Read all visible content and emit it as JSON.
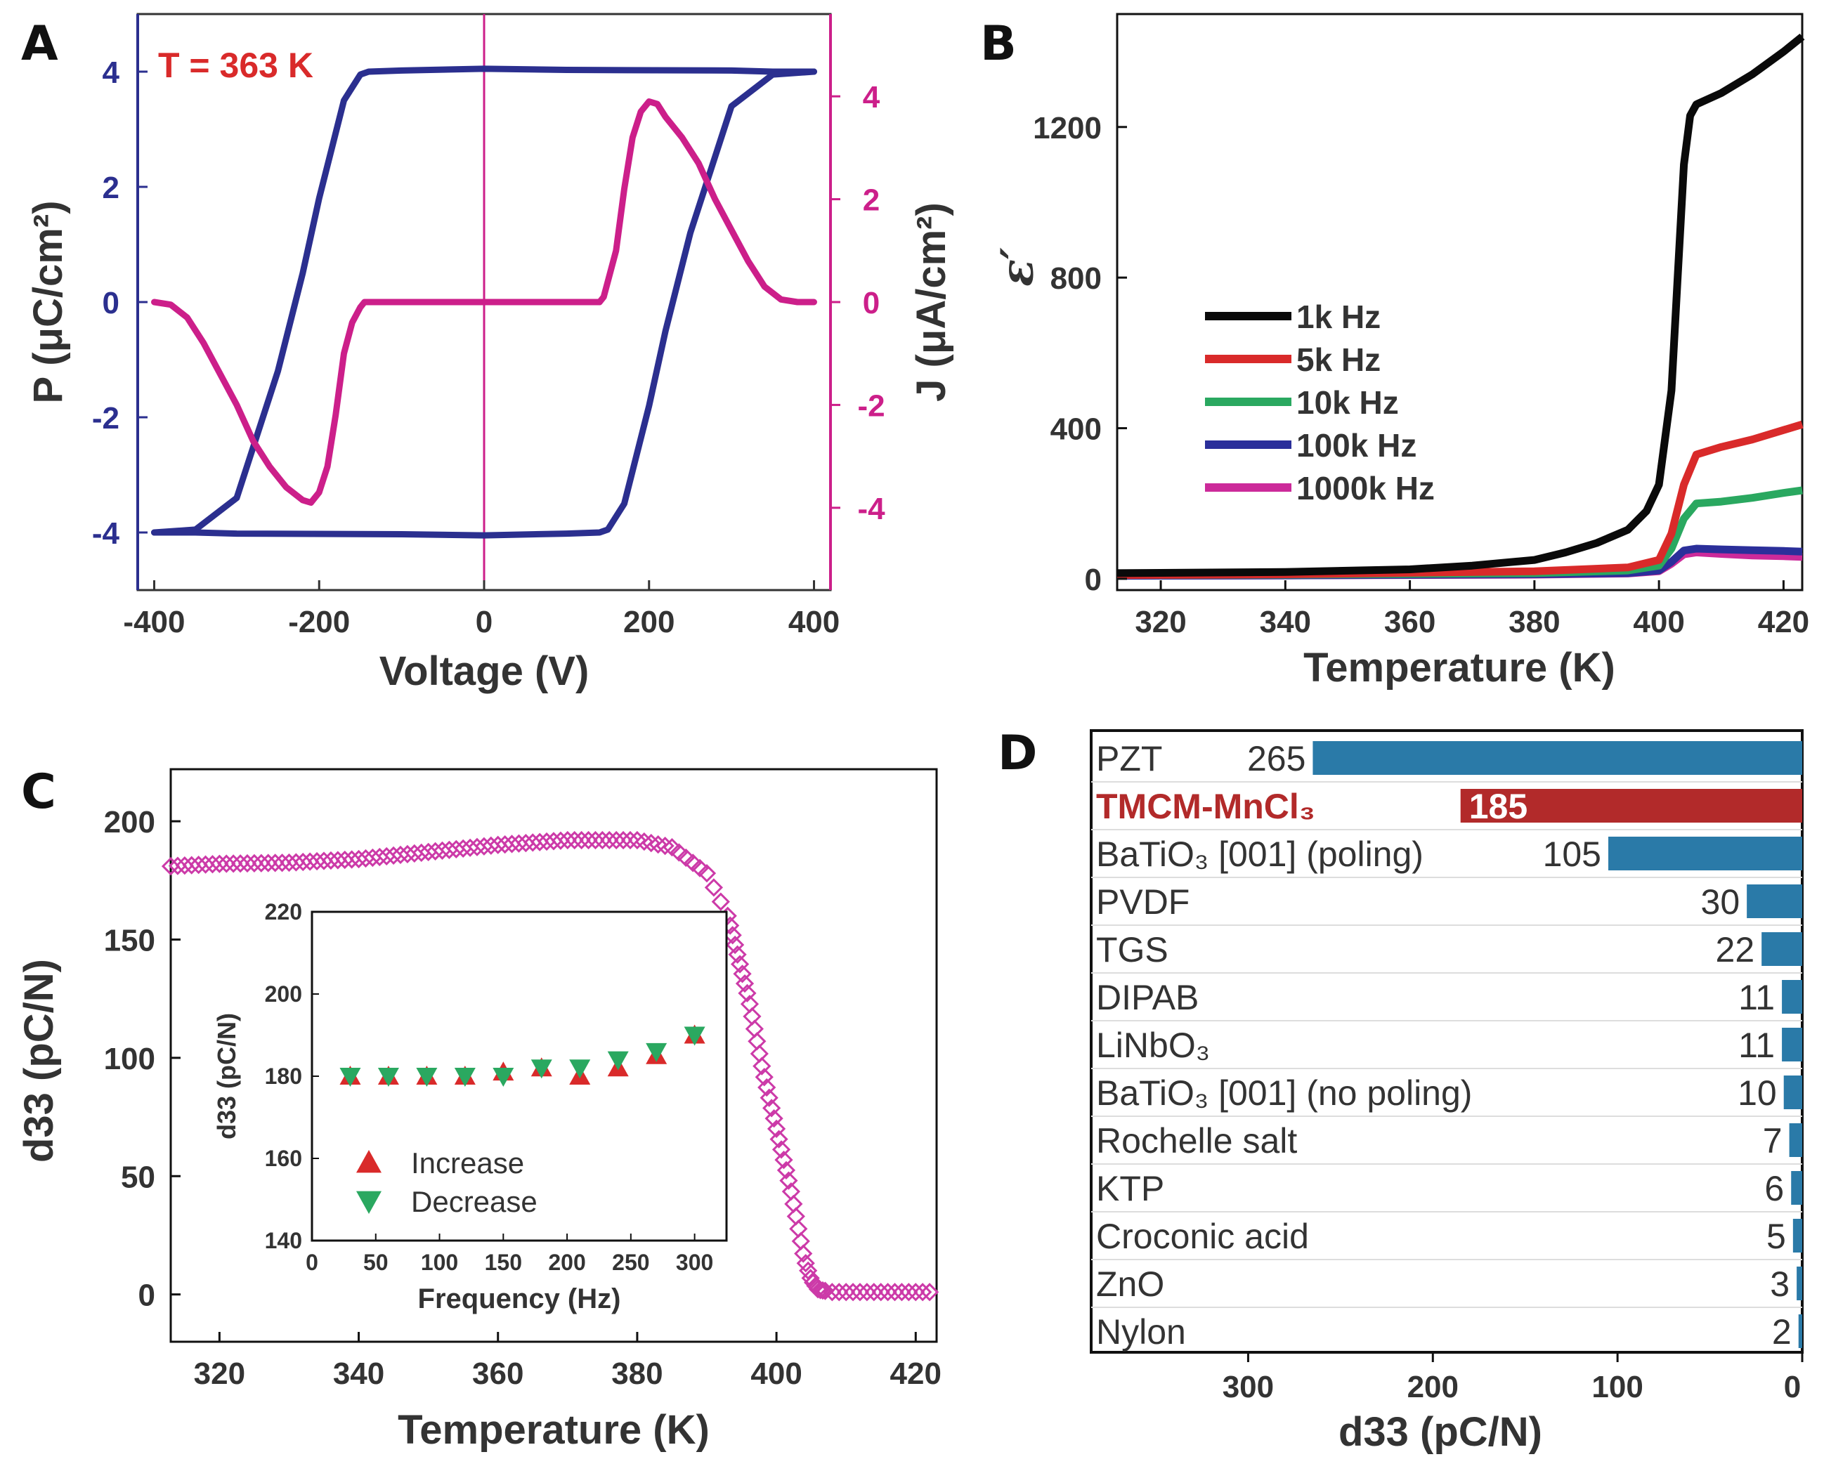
{
  "chart_data": [
    {
      "panel": "A",
      "type": "line",
      "annotation": "T = 363 K",
      "xlabel": "Voltage (V)",
      "ylabel": "P (μC/cm²)",
      "ylabel_right": "J (μA/cm²)",
      "xlim": [
        -420,
        420
      ],
      "ylim": [
        -5,
        5
      ],
      "ylim_right": [
        -5.6,
        5.6
      ],
      "xticks": [
        "-400",
        "-200",
        "0",
        "200",
        "400"
      ],
      "yticks": [
        "-4",
        "-2",
        "0",
        "2",
        "4"
      ],
      "yticks_right": [
        "-4",
        "-2",
        "0",
        "2",
        "4"
      ],
      "colors": {
        "P": "#2b2f8f",
        "J": "#cc1f8a"
      },
      "series": [
        {
          "axis": "left",
          "values_x": [
            -400,
            -350,
            -300,
            -250,
            -220,
            -200,
            -170,
            -150,
            -140,
            -100,
            0,
            100,
            300,
            350,
            370,
            400
          ],
          "values_y": [
            -4.0,
            -3.95,
            -3.4,
            -1.2,
            0.5,
            1.8,
            3.5,
            3.95,
            4.0,
            4.02,
            4.05,
            4.03,
            4.02,
            4.0,
            4.0,
            4.0
          ]
        },
        {
          "axis": "left",
          "values_x": [
            400,
            350,
            300,
            250,
            220,
            200,
            170,
            150,
            140,
            100,
            0,
            -100,
            -300,
            -350,
            -370,
            -400
          ],
          "values_y": [
            4.0,
            3.95,
            3.4,
            1.2,
            -0.5,
            -1.8,
            -3.5,
            -3.95,
            -4.0,
            -4.02,
            -4.05,
            -4.03,
            -4.02,
            -4.0,
            -4.0,
            -4.0
          ]
        },
        {
          "axis": "right",
          "values_x": [
            -400,
            -380,
            -360,
            -340,
            -320,
            -300,
            -280,
            -260,
            -240,
            -220,
            -210,
            -200,
            -190,
            -180,
            -170,
            -160,
            -150,
            -145,
            -140,
            -100,
            0,
            140
          ],
          "values_y": [
            0,
            -0.05,
            -0.3,
            -0.8,
            -1.4,
            -2.0,
            -2.7,
            -3.2,
            -3.6,
            -3.85,
            -3.9,
            -3.7,
            -3.2,
            -2.2,
            -1.0,
            -0.4,
            -0.1,
            0,
            0,
            0,
            0,
            0
          ]
        },
        {
          "axis": "right",
          "values_x": [
            140,
            145,
            150,
            160,
            170,
            180,
            190,
            200,
            210,
            220,
            240,
            260,
            280,
            300,
            320,
            340,
            360,
            380,
            400
          ],
          "values_y": [
            0,
            0.1,
            0.4,
            1.0,
            2.2,
            3.2,
            3.7,
            3.9,
            3.85,
            3.6,
            3.2,
            2.7,
            2.0,
            1.4,
            0.8,
            0.3,
            0.05,
            0,
            0
          ]
        }
      ]
    },
    {
      "panel": "B",
      "type": "line",
      "xlabel": "Temperature (K)",
      "ylabel": "ε′",
      "xlim": [
        313,
        423
      ],
      "ylim": [
        -30,
        1500
      ],
      "xticks": [
        "320",
        "340",
        "360",
        "380",
        "400",
        "420"
      ],
      "yticks": [
        "0",
        "400",
        "800",
        "1200"
      ],
      "series": [
        {
          "name": "1k Hz",
          "color": "#0a0a0a",
          "x": [
            313,
            340,
            360,
            370,
            380,
            385,
            390,
            395,
            398,
            400,
            402,
            403,
            404,
            405,
            406,
            410,
            415,
            420,
            423
          ],
          "y": [
            15,
            18,
            25,
            35,
            50,
            70,
            95,
            130,
            180,
            250,
            500,
            800,
            1100,
            1230,
            1260,
            1290,
            1340,
            1400,
            1440
          ]
        },
        {
          "name": "5k Hz",
          "color": "#d92a2a",
          "x": [
            313,
            340,
            380,
            395,
            400,
            402,
            404,
            406,
            410,
            415,
            420,
            423
          ],
          "y": [
            10,
            12,
            20,
            30,
            50,
            120,
            250,
            330,
            350,
            370,
            395,
            410
          ]
        },
        {
          "name": "10k Hz",
          "color": "#2aa860",
          "x": [
            313,
            340,
            380,
            395,
            400,
            402,
            404,
            406,
            410,
            415,
            420,
            423
          ],
          "y": [
            10,
            11,
            15,
            22,
            35,
            80,
            160,
            200,
            205,
            215,
            228,
            235
          ]
        },
        {
          "name": "100k Hz",
          "color": "#2b2f9a",
          "x": [
            313,
            340,
            380,
            395,
            400,
            402,
            404,
            406,
            410,
            415,
            420,
            423
          ],
          "y": [
            8,
            9,
            12,
            15,
            22,
            45,
            75,
            80,
            78,
            76,
            74,
            72
          ]
        },
        {
          "name": "1000k Hz",
          "color": "#cc2a9a",
          "x": [
            313,
            340,
            380,
            395,
            400,
            402,
            404,
            406,
            410,
            415,
            420,
            423
          ],
          "y": [
            8,
            9,
            11,
            14,
            20,
            40,
            65,
            70,
            66,
            62,
            60,
            58
          ]
        }
      ]
    },
    {
      "panel": "C",
      "type": "scatter",
      "xlabel": "Temperature (K)",
      "ylabel": "d33 (pC/N)",
      "xlim": [
        313,
        423
      ],
      "ylim": [
        -20,
        222
      ],
      "xticks": [
        "320",
        "340",
        "360",
        "380",
        "400",
        "420"
      ],
      "yticks": [
        "0",
        "50",
        "100",
        "150",
        "200"
      ],
      "color": "#cc3aa8",
      "curve": {
        "x": [
          313,
          320,
          330,
          340,
          350,
          360,
          370,
          380,
          385,
          390,
          393,
          396,
          398,
          400,
          402,
          403,
          404,
          405,
          406,
          408,
          412,
          423
        ],
        "y": [
          181,
          182,
          182.5,
          184,
          187,
          190,
          192,
          192,
          189,
          178,
          160,
          125,
          95,
          70,
          45,
          30,
          15,
          6,
          2,
          1,
          1,
          1
        ]
      },
      "inset": {
        "type": "scatter",
        "xlabel": "Frequency (Hz)",
        "ylabel": "d33 (pC/N)",
        "xlim": [
          0,
          325
        ],
        "ylim": [
          140,
          220
        ],
        "xticks": [
          "0",
          "50",
          "100",
          "150",
          "200",
          "250",
          "300"
        ],
        "yticks": [
          "140",
          "160",
          "180",
          "200",
          "220"
        ],
        "legend": [
          "Increase",
          "Decrease"
        ],
        "series": [
          {
            "name": "Increase",
            "color": "#d92a2a",
            "x": [
              30,
              60,
              90,
              120,
              150,
              180,
              210,
              240,
              270,
              300
            ],
            "y": [
              180,
              180,
              180,
              180,
              181,
              182,
              180,
              182,
              185,
              190
            ]
          },
          {
            "name": "Decrease",
            "color": "#2aa860",
            "x": [
              30,
              60,
              90,
              120,
              150,
              180,
              210,
              240,
              270,
              300
            ],
            "y": [
              180,
              180,
              180,
              180,
              180,
              182,
              182,
              184,
              186,
              190
            ]
          }
        ]
      }
    },
    {
      "panel": "D",
      "type": "bar",
      "orientation": "horizontal-reversed",
      "xlabel": "d33 (pC/N)",
      "xlim": [
        0,
        385
      ],
      "xticks": [
        "300",
        "200",
        "100",
        "0"
      ],
      "categories": [
        "PZT",
        "TMCM-MnCl₃",
        "BaTiO₃ [001] (poling)",
        "PVDF",
        "TGS",
        "DIPAB",
        "LiNbO₃",
        "BaTiO₃ [001] (no poling)",
        "Rochelle salt",
        "KTP",
        "Croconic acid",
        "ZnO",
        "Nylon"
      ],
      "values": [
        265,
        185,
        105,
        30,
        22,
        11,
        11,
        10,
        7,
        6,
        5,
        3,
        2
      ],
      "value_labels": [
        "265",
        "185",
        "105",
        "30",
        "22",
        "11",
        "11",
        "10",
        "7",
        "6",
        "5",
        "3",
        "2"
      ],
      "highlight_index": 1,
      "colors": {
        "bar": "#2a7aa8",
        "highlight": "#b22a2a"
      }
    }
  ],
  "panel_letters": [
    "A",
    "B",
    "C",
    "D"
  ]
}
